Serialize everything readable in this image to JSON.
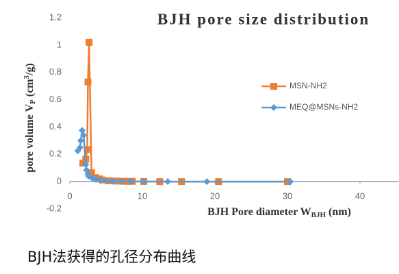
{
  "chart_data": {
    "type": "line",
    "title": "BJH pore size distribution",
    "xlabel": [
      "BJH Pore diameter W",
      "BJH",
      " (nm)"
    ],
    "ylabel": [
      "pore volume V",
      "P",
      " (cm",
      "3",
      "/g)"
    ],
    "caption": "BJH法获得的孔径分布曲线",
    "xlim": [
      0,
      45
    ],
    "xticks": [
      0,
      10,
      20,
      30,
      40
    ],
    "ylim": [
      -0.2,
      1.2
    ],
    "yticks": [
      1.2,
      1,
      0.8,
      0.6,
      0.4,
      0.2,
      0,
      -0.2
    ],
    "series": [
      {
        "name": "MSN-NH2",
        "color": "#ED7D31",
        "marker": "square",
        "x": [
          1.8,
          2.2,
          2.4,
          2.5,
          2.65,
          3.0,
          3.5,
          4.1,
          4.5,
          5.5,
          6.4,
          7.2,
          7.8,
          8.6,
          10.2,
          12.4,
          15.4,
          20.5,
          30.0
        ],
        "values": [
          0.135,
          0.165,
          0.235,
          0.73,
          1.02,
          0.065,
          0.03,
          0.02,
          0.012,
          0.006,
          0.004,
          0.003,
          0.002,
          0.002,
          0.001,
          0,
          0,
          0,
          0
        ]
      },
      {
        "name": "MEQ@MSNs-NH2",
        "color": "#5B9BD5",
        "marker": "diamond",
        "x": [
          1.1,
          1.4,
          1.5,
          1.7,
          1.9,
          2.2,
          2.3,
          2.5,
          2.6,
          3.1,
          3.6,
          4.2,
          5.0,
          5.9,
          7.0,
          8.3,
          10.2,
          13.5,
          18.9,
          30.4
        ],
        "values": [
          0.225,
          0.25,
          0.3,
          0.375,
          0.34,
          0.125,
          0.085,
          0.055,
          0.04,
          0.025,
          0.015,
          0.01,
          0.005,
          0.003,
          0.002,
          0.001,
          0.001,
          0,
          0,
          0
        ]
      }
    ]
  }
}
